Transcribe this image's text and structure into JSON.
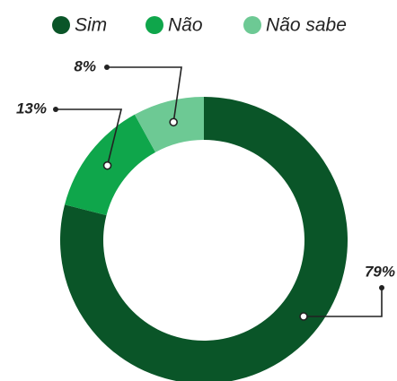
{
  "chart_data": {
    "type": "donut",
    "categories": [
      "Sim",
      "Não",
      "Não sabe"
    ],
    "values": [
      79,
      13,
      8
    ],
    "value_labels": [
      "79%",
      "13%",
      "8%"
    ],
    "colors": [
      "#0a5528",
      "#0fa64b",
      "#6dc994"
    ],
    "legend": "top"
  }
}
